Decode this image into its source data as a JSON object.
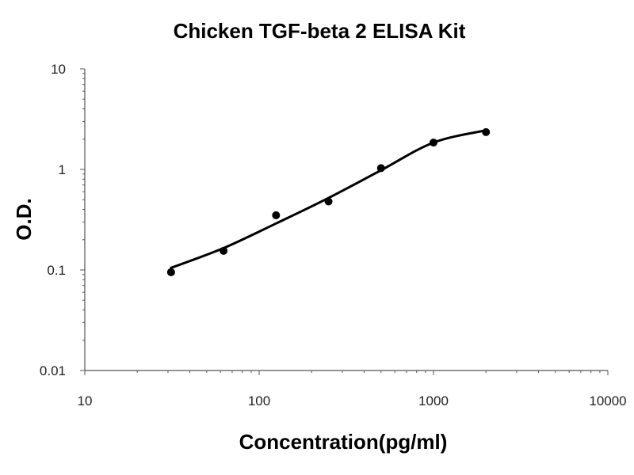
{
  "chart_data": {
    "type": "scatter",
    "title": "Chicken TGF-beta 2 ELISA Kit",
    "xlabel": "Concentration(pg/ml)",
    "ylabel": "O.D.",
    "xscale": "log",
    "yscale": "log",
    "xlim": [
      10,
      10000
    ],
    "ylim": [
      0.01,
      10
    ],
    "x_tick_labels": [
      "10",
      "100",
      "1000",
      "10000"
    ],
    "y_tick_labels": [
      "0.01",
      "0.1",
      "1",
      "10"
    ],
    "grid": false,
    "legend": "none",
    "series": [
      {
        "x": [
          31.25,
          62.5,
          125,
          250,
          500,
          1000,
          2000
        ],
        "y": [
          0.095,
          0.155,
          0.35,
          0.48,
          1.03,
          1.85,
          2.35
        ],
        "fit": "smooth curve"
      }
    ],
    "colors": {
      "points": "#000000",
      "curve": "#000000",
      "axis": "#555555"
    }
  }
}
